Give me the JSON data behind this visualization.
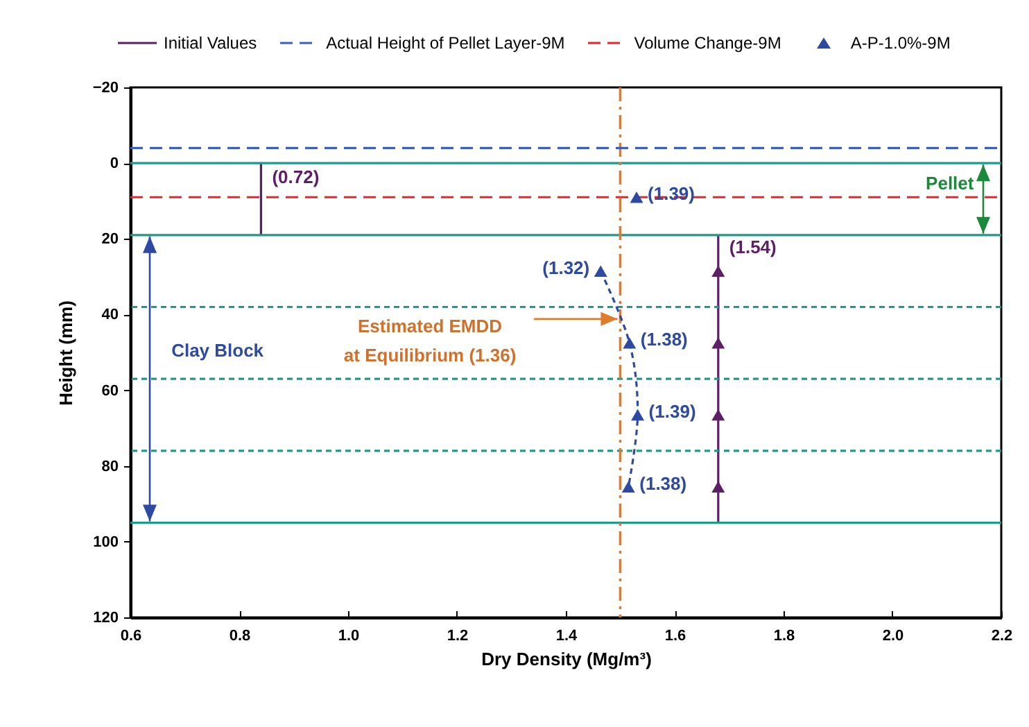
{
  "chart_data": {
    "type": "scatter",
    "xlabel": "Dry Density (Mg/m³)",
    "ylabel": "Height (mm)",
    "xlim": [
      0.6,
      2.2
    ],
    "xticks": [
      0.6,
      0.8,
      {
        "value": 1,
        "label": "1.0"
      },
      1.2,
      1.4,
      1.6,
      1.8,
      {
        "value": 2,
        "label": "2.0"
      },
      2.2
    ],
    "ylim": [
      120,
      -20
    ],
    "yticks": [
      -20,
      0,
      20,
      40,
      60,
      80,
      100,
      120
    ],
    "legend": "top",
    "series": [
      {
        "name": "Initial Values",
        "type": "line",
        "color": "#5c1f66",
        "line_style": "solid",
        "x": [
          0.84,
          0.84,
          null,
          1.68,
          1.68
        ],
        "values": [
          0,
          19,
          null,
          19,
          95
        ]
      },
      {
        "name": "Actual Height of Pellet Layer-9M",
        "type": "line",
        "color": "#3a5fc0",
        "line_style": "dashed",
        "x": [
          0.6,
          2.2
        ],
        "values": [
          -4,
          -4
        ]
      },
      {
        "name": "Volume Change-9M",
        "type": "line",
        "color": "#e8262a",
        "line_style": "dashed",
        "x": [
          0.6,
          2.2
        ],
        "values": [
          9,
          9
        ]
      },
      {
        "type": "line",
        "color": "#2e4aa0",
        "line_style": "dotted",
        "x": [
          1.464,
          1.517,
          1.532,
          1.515
        ],
        "values": [
          28.5,
          47.5,
          66.5,
          85.5
        ]
      },
      {
        "color": "#5c1f66",
        "marker": "triangle",
        "x": [
          1.68,
          1.68,
          1.68,
          1.68
        ],
        "values": [
          28.5,
          47.5,
          66.5,
          85.5
        ]
      },
      {
        "name": "A-P-1.0%-9M",
        "color": "#2e4aa0",
        "marker": "triangle",
        "x": [
          1.53,
          1.464,
          1.517,
          1.532,
          1.515
        ],
        "values": [
          9,
          28.5,
          47.5,
          66.5,
          85.5
        ]
      }
    ],
    "ref_lines": [
      {
        "axis": "y",
        "value": 0,
        "color": "#1f9a8a",
        "line_style": "solid"
      },
      {
        "axis": "y",
        "value": 19,
        "color": "#1f9a8a",
        "line_style": "solid"
      },
      {
        "axis": "y",
        "value": 95,
        "color": "#1f9a8a",
        "line_style": "solid"
      },
      {
        "axis": "y",
        "value": 38,
        "color": "#1f9a8a",
        "line_style": "dotted"
      },
      {
        "axis": "y",
        "value": 57,
        "color": "#1f9a8a",
        "line_style": "dotted"
      },
      {
        "axis": "y",
        "value": 76,
        "color": "#1f9a8a",
        "line_style": "dotted"
      },
      {
        "axis": "x",
        "value": 1.5,
        "color": "#e07b2a",
        "line_style": "dashed"
      }
    ],
    "annotations": [
      {
        "text": "(1.39)",
        "x": 1.53,
        "y": 9
      },
      {
        "text": "(1.32)",
        "x": 1.464,
        "y": 28.5
      },
      {
        "text": "(1.38)",
        "x": 1.517,
        "y": 47.5
      },
      {
        "text": "(1.39)",
        "x": 1.532,
        "y": 66.5
      },
      {
        "text": "(1.38)",
        "x": 1.515,
        "y": 85.5
      },
      {
        "text": "(0.72)",
        "x": 0.84,
        "y": 4.5
      },
      {
        "text": "(1.54)",
        "x": 1.68,
        "y": 23
      },
      {
        "text": "Pellet",
        "x": 2.17,
        "y": 0
      },
      "Clay Block",
      "Estimated EMDD\nat Equilibrium (1.36)"
    ]
  }
}
